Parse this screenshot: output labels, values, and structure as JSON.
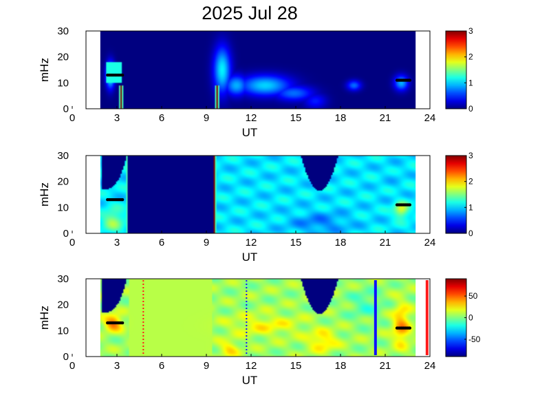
{
  "figure": {
    "title": "2025 Jul 28"
  },
  "colors": {
    "background": "#00007f",
    "frame": "#000000",
    "marker": "#000000",
    "line_red": "#ff1a1a",
    "line_blue": "#1010ff"
  },
  "chart_data": [
    {
      "type": "heatmap",
      "title": "",
      "xlabel": "UT",
      "ylabel": "mHz",
      "xlim": [
        0,
        24
      ],
      "ylim": [
        0,
        30
      ],
      "xticks": [
        "0",
        "3",
        "6",
        "9",
        "12",
        "15",
        "18",
        "21",
        "24"
      ],
      "yticks": [
        "0",
        "10",
        "20",
        "30"
      ],
      "colorbar": {
        "min": 0,
        "max": 3,
        "ticks": [
          "0",
          "1",
          "2",
          "3"
        ],
        "colormap": "jet"
      },
      "data_extent_ut": [
        1.0,
        23.0
      ],
      "blobs": [
        {
          "x": 1.7,
          "y": 13,
          "sx": 0.3,
          "sy": 5,
          "value": 1.3
        },
        {
          "x": 9.5,
          "y": 15,
          "sx": 0.6,
          "sy": 9,
          "value": 1.1
        },
        {
          "x": 10.5,
          "y": 9,
          "sx": 0.8,
          "sy": 4,
          "value": 0.9
        },
        {
          "x": 12.5,
          "y": 9,
          "sx": 1.8,
          "sy": 4,
          "value": 1.0
        },
        {
          "x": 14.5,
          "y": 6,
          "sx": 1.4,
          "sy": 3,
          "value": 0.7
        },
        {
          "x": 16.0,
          "y": 3,
          "sx": 0.8,
          "sy": 3,
          "value": 0.45
        },
        {
          "x": 18.7,
          "y": 9,
          "sx": 0.5,
          "sy": 2,
          "value": 0.7
        },
        {
          "x": 22.0,
          "y": 10,
          "sx": 0.5,
          "sy": 3,
          "value": 0.9
        }
      ],
      "bands": [
        {
          "x0": 1.45,
          "x1": 2.45,
          "y0": 10,
          "y1": 18,
          "value": 1.2
        }
      ],
      "spikes": [
        {
          "x": 2.45,
          "y_top": 9,
          "value": 3.0
        },
        {
          "x": 9.15,
          "y_top": 9,
          "value": 3.0
        }
      ],
      "markers": [
        {
          "x0": 1.5,
          "x1": 2.55,
          "y": 13
        },
        {
          "x0": 21.7,
          "x1": 22.6,
          "y": 11
        }
      ],
      "lines": []
    },
    {
      "type": "heatmap",
      "title": "",
      "xlabel": "UT",
      "ylabel": "mHz",
      "xlim": [
        0,
        24
      ],
      "ylim": [
        0,
        30
      ],
      "xticks": [
        "0",
        "3",
        "6",
        "9",
        "12",
        "15",
        "18",
        "21",
        "24"
      ],
      "yticks": [
        "0",
        "10",
        "20",
        "30"
      ],
      "colorbar": {
        "min": 0,
        "max": 3,
        "ticks": [
          "0",
          "1",
          "2",
          "3"
        ],
        "colormap": "jet"
      },
      "data_extent_ut": [
        1.0,
        23.0
      ],
      "base_value": 1.05,
      "low_regions": [
        {
          "x0": 2.9,
          "x1": 8.9,
          "value": 0.0
        }
      ],
      "holes": [
        {
          "x0": 1.1,
          "x1": 2.85,
          "y_at_left": 17,
          "y_at_right": 30,
          "shape": "rise"
        },
        {
          "x0": 15.0,
          "x1": 17.6,
          "y_at_center": 16.5,
          "shape": "valley"
        }
      ],
      "blobs": [
        {
          "x": 1.9,
          "y": 5,
          "sx": 0.7,
          "sy": 4,
          "value": 1.6
        },
        {
          "x": 16.3,
          "y": 4,
          "sx": 2.0,
          "sy": 4,
          "value": 0.75
        },
        {
          "x": 21.5,
          "y": 22,
          "sx": 0.6,
          "sy": 5,
          "value": 1.0
        },
        {
          "x": 22.0,
          "y": 9,
          "sx": 0.5,
          "sy": 3,
          "value": 1.8
        }
      ],
      "spikes": [
        {
          "x": 2.95,
          "y_top": 30,
          "value": 3.0
        },
        {
          "x": 8.95,
          "y_top": 30,
          "value": 3.0
        }
      ],
      "markers": [
        {
          "x0": 1.5,
          "x1": 2.55,
          "y": 13
        },
        {
          "x0": 21.7,
          "x1": 22.6,
          "y": 11
        }
      ],
      "lines": []
    },
    {
      "type": "heatmap",
      "title": "",
      "xlabel": "UT",
      "ylabel": "mHz",
      "xlim": [
        0,
        24
      ],
      "ylim": [
        0,
        30
      ],
      "xticks": [
        "0",
        "3",
        "6",
        "9",
        "12",
        "15",
        "18",
        "21",
        "24"
      ],
      "yticks": [
        "0",
        "10",
        "20",
        "30"
      ],
      "colorbar": {
        "min": -90,
        "max": 90,
        "ticks": [
          "-50",
          "0",
          "50"
        ],
        "colormap": "jet"
      },
      "data_extent_ut": [
        1.0,
        23.0
      ],
      "base_value": 5,
      "mid_regions": [
        {
          "x0": 3.0,
          "x1": 8.8,
          "value": 10
        }
      ],
      "holes": [
        {
          "x0": 1.1,
          "x1": 2.85,
          "y_at_left": 17,
          "y_at_right": 30,
          "shape": "rise"
        },
        {
          "x0": 15.0,
          "x1": 17.6,
          "y_at_center": 16.5,
          "shape": "valley"
        }
      ],
      "blobs": [
        {
          "x": 1.9,
          "y": 13,
          "sx": 0.6,
          "sy": 3,
          "value": 50
        },
        {
          "x": 12.5,
          "y": 12,
          "sx": 2.5,
          "sy": 4,
          "value": 22
        },
        {
          "x": 16.5,
          "y": 6,
          "sx": 1.0,
          "sy": 4,
          "value": 30
        },
        {
          "x": 10.0,
          "y": 3,
          "sx": 0.7,
          "sy": 3,
          "value": 28
        },
        {
          "x": 22.0,
          "y": 12,
          "sx": 0.6,
          "sy": 8,
          "value": 40
        },
        {
          "x": 19.5,
          "y": 20,
          "sx": 1.2,
          "sy": 6,
          "value": -10
        }
      ],
      "markers": [
        {
          "x0": 1.5,
          "x1": 2.55,
          "y": 13
        },
        {
          "x0": 21.7,
          "x1": 22.6,
          "y": 11
        }
      ],
      "lines": [
        {
          "x": 4.0,
          "color": "#ff1a1a",
          "style": "dotted"
        },
        {
          "x": 11.2,
          "color": "#1010ff",
          "style": "dotted"
        },
        {
          "x": 20.2,
          "color": "#1010ff",
          "style": "solid"
        },
        {
          "x": 23.8,
          "color": "#ff1a1a",
          "style": "solid"
        }
      ]
    }
  ]
}
